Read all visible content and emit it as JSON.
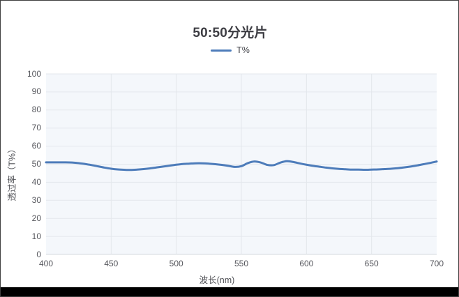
{
  "canvas": {
    "background": "#ffffff",
    "border_color": "#3f3f3f",
    "bottom_bar_color": "#000000"
  },
  "legend": {
    "items": [
      {
        "label": "T%",
        "color": "#4d7cba"
      }
    ]
  },
  "chart_data": {
    "type": "line",
    "title": "50:50分光片",
    "xlabel": "波长(nm)",
    "ylabel": "透过率（T%）",
    "xlim": [
      400,
      700
    ],
    "ylim": [
      0,
      100
    ],
    "x_ticks": [
      400,
      450,
      500,
      550,
      600,
      650,
      700
    ],
    "y_ticks": [
      0,
      10,
      20,
      30,
      40,
      50,
      60,
      70,
      80,
      90,
      100
    ],
    "grid": true,
    "legend_position": "top-center",
    "plot_background": "#f4f7fb",
    "gridline_color": "#e3e7ec",
    "axis_line_color": "#cdd3da",
    "series": [
      {
        "name": "T%",
        "color": "#4d7cba",
        "x": [
          400,
          405,
          410,
          415,
          420,
          425,
          430,
          435,
          440,
          445,
          450,
          455,
          460,
          465,
          470,
          475,
          480,
          485,
          490,
          495,
          500,
          505,
          510,
          515,
          520,
          525,
          530,
          535,
          540,
          545,
          550,
          555,
          560,
          565,
          570,
          575,
          580,
          585,
          590,
          595,
          600,
          605,
          610,
          615,
          620,
          625,
          630,
          635,
          640,
          645,
          650,
          655,
          660,
          665,
          670,
          675,
          680,
          685,
          690,
          695,
          700
        ],
        "values": [
          51.0,
          51.0,
          51.0,
          51.0,
          50.9,
          50.6,
          50.1,
          49.5,
          48.8,
          48.1,
          47.5,
          47.1,
          46.9,
          46.8,
          47.0,
          47.3,
          47.7,
          48.2,
          48.7,
          49.2,
          49.7,
          50.1,
          50.3,
          50.5,
          50.5,
          50.3,
          50.0,
          49.6,
          49.1,
          48.5,
          48.9,
          50.6,
          51.5,
          50.9,
          49.6,
          49.5,
          50.9,
          51.7,
          51.2,
          50.4,
          49.7,
          49.1,
          48.6,
          48.1,
          47.7,
          47.4,
          47.2,
          47.0,
          47.0,
          46.9,
          47.0,
          47.1,
          47.3,
          47.5,
          47.8,
          48.2,
          48.7,
          49.3,
          50.0,
          50.7,
          51.5
        ]
      }
    ]
  }
}
